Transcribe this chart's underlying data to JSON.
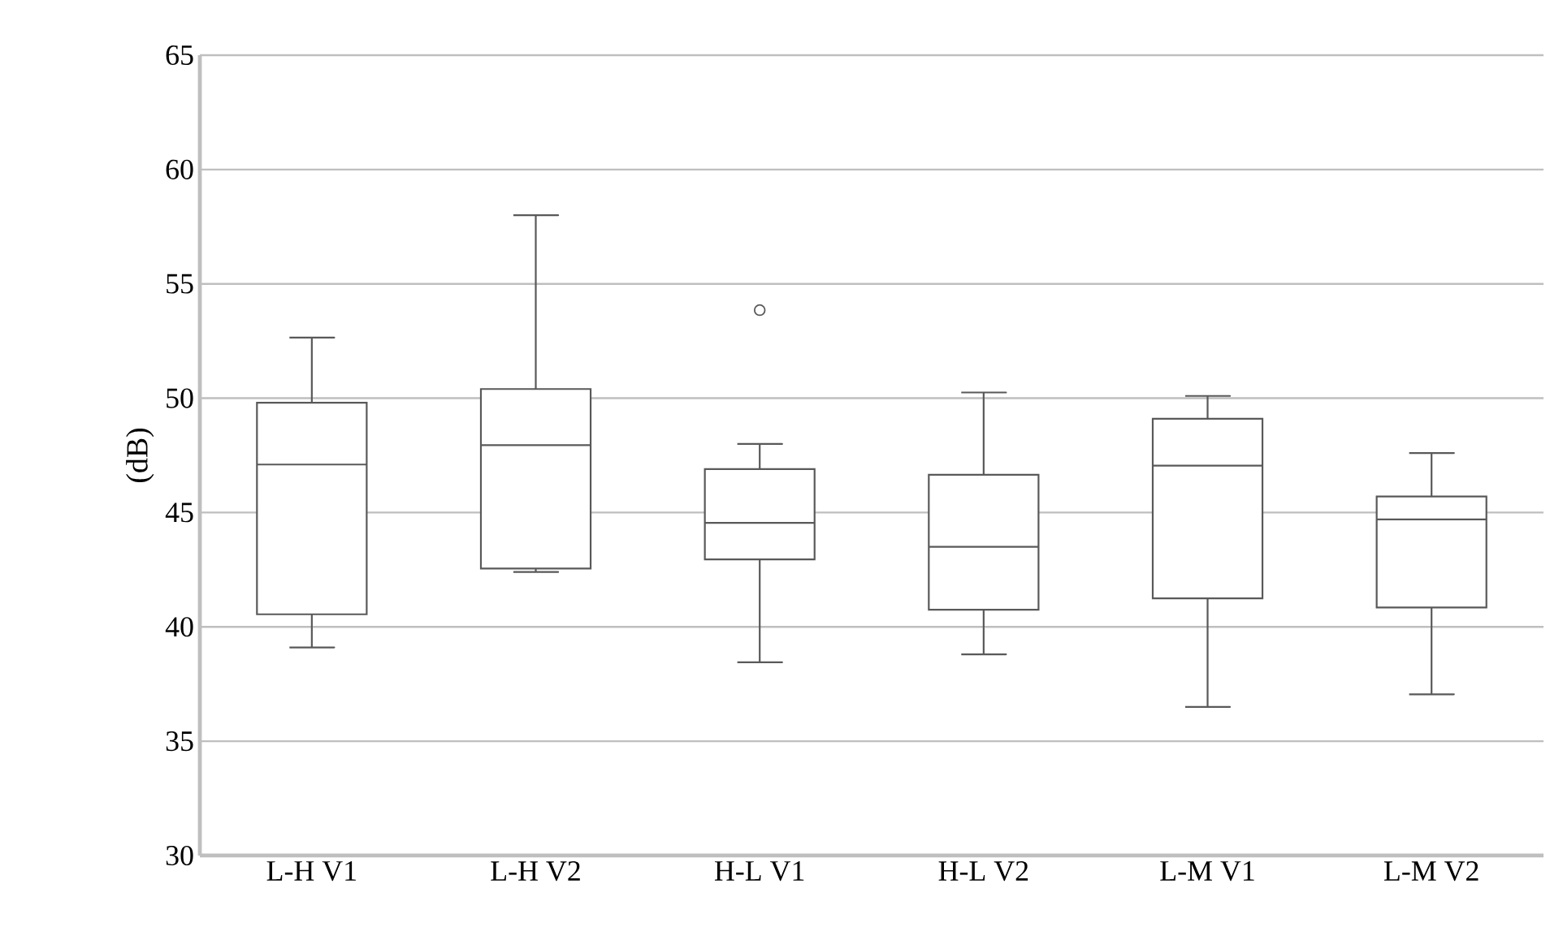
{
  "chart_data": {
    "type": "box",
    "ylabel": "(dB)",
    "categories": [
      "L-H V1",
      "L-H V2",
      "H-L V1",
      "H-L V2",
      "L-M V1",
      "L-M V2"
    ],
    "boxes": [
      {
        "low": 39.1,
        "q1": 40.55,
        "median": 47.1,
        "q3": 49.8,
        "high": 52.65
      },
      {
        "low": 42.4,
        "q1": 42.55,
        "median": 47.95,
        "q3": 50.4,
        "high": 58
      },
      {
        "low": 38.45,
        "q1": 42.95,
        "median": 44.55,
        "q3": 46.9,
        "high": 48.0,
        "outliers": [
          53.85
        ]
      },
      {
        "low": 38.8,
        "q1": 40.75,
        "median": 43.5,
        "q3": 46.65,
        "high": 50.25
      },
      {
        "low": 36.5,
        "q1": 41.25,
        "median": 47.05,
        "q3": 49.1,
        "high": 50.1
      },
      {
        "low": 37.05,
        "q1": 40.85,
        "median": 44.7,
        "q3": 45.7,
        "high": 47.6
      }
    ],
    "color": "#595959",
    "ylim": [
      30,
      65
    ],
    "yticks": [
      30,
      35,
      40,
      45,
      50,
      55,
      60,
      65
    ],
    "grid": "y"
  }
}
